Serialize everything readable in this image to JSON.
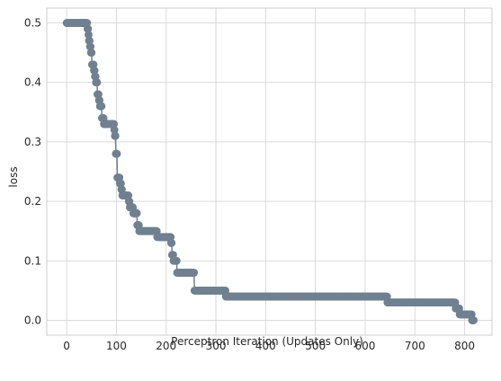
{
  "chart_data": {
    "type": "line",
    "title": "",
    "xlabel": "Perceptron Iteration (Updates Only)",
    "ylabel": "loss",
    "xlim": [
      -40,
      855
    ],
    "ylim": [
      -0.025,
      0.525
    ],
    "xticks": [
      0,
      100,
      200,
      300,
      400,
      500,
      600,
      700,
      800
    ],
    "yticks": [
      0.0,
      0.1,
      0.2,
      0.3,
      0.4,
      0.5
    ],
    "ytick_labels": [
      "0.0",
      "0.1",
      "0.2",
      "0.3",
      "0.4",
      "0.5"
    ],
    "grid": true,
    "legend": "none",
    "marker": "circle",
    "color": "#708090",
    "steps": [
      [
        0,
        0.5
      ],
      [
        42,
        0.49
      ],
      [
        44,
        0.48
      ],
      [
        45,
        0.47
      ],
      [
        47,
        0.46
      ],
      [
        49,
        0.45
      ],
      [
        51,
        0.43
      ],
      [
        55,
        0.42
      ],
      [
        57,
        0.41
      ],
      [
        59,
        0.4
      ],
      [
        62,
        0.38
      ],
      [
        65,
        0.37
      ],
      [
        67,
        0.36
      ],
      [
        71,
        0.34
      ],
      [
        75,
        0.33
      ],
      [
        96,
        0.32
      ],
      [
        97,
        0.31
      ],
      [
        99,
        0.28
      ],
      [
        102,
        0.24
      ],
      [
        107,
        0.23
      ],
      [
        110,
        0.22
      ],
      [
        112,
        0.21
      ],
      [
        125,
        0.2
      ],
      [
        127,
        0.19
      ],
      [
        134,
        0.18
      ],
      [
        142,
        0.16
      ],
      [
        146,
        0.15
      ],
      [
        182,
        0.14
      ],
      [
        210,
        0.13
      ],
      [
        212,
        0.11
      ],
      [
        215,
        0.1
      ],
      [
        222,
        0.08
      ],
      [
        257,
        0.05
      ],
      [
        320,
        0.04
      ],
      [
        645,
        0.03
      ],
      [
        782,
        0.02
      ],
      [
        790,
        0.01
      ],
      [
        815,
        0.0
      ]
    ],
    "x_end": 818
  }
}
